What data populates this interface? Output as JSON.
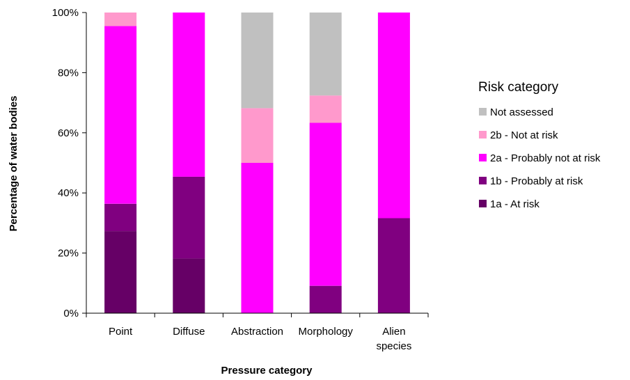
{
  "chart_data": {
    "type": "bar",
    "stacked": "percent",
    "xlabel": "Pressure category",
    "ylabel": "Percentage of water bodies",
    "ylim": [
      0,
      100
    ],
    "yticks": [
      "0%",
      "20%",
      "40%",
      "60%",
      "80%",
      "100%"
    ],
    "categories": [
      "Point",
      "Diffuse",
      "Abstraction",
      "Morphology",
      "Alien species"
    ],
    "category_lines": [
      [
        "Point"
      ],
      [
        "Diffuse"
      ],
      [
        "Abstraction"
      ],
      [
        "Morphology"
      ],
      [
        "Alien",
        "species"
      ]
    ],
    "legend_title": "Risk category",
    "legend_position": "right",
    "grid": false,
    "series": [
      {
        "name": "1a - At risk",
        "color": "#660066",
        "values": [
          27.3,
          18.2,
          0,
          0,
          0
        ]
      },
      {
        "name": "1b - Probably at risk",
        "color": "#800080",
        "values": [
          9.1,
          27.2,
          0,
          9.1,
          31.6
        ]
      },
      {
        "name": "2a - Probably not at risk",
        "color": "#ff00ff",
        "values": [
          59.1,
          54.6,
          50.0,
          54.2,
          68.4
        ]
      },
      {
        "name": "2b - Not at risk",
        "color": "#ff99cc",
        "values": [
          4.5,
          0,
          18.2,
          9.1,
          0
        ]
      },
      {
        "name": "Not assessed",
        "color": "#c0c0c0",
        "values": [
          0,
          0,
          31.8,
          27.6,
          0
        ]
      }
    ]
  }
}
